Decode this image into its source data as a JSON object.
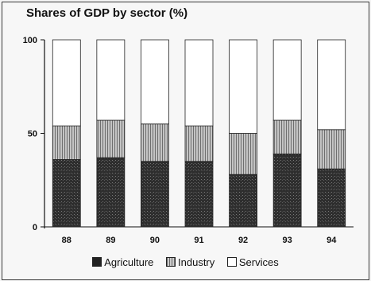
{
  "chart_data": {
    "type": "bar",
    "stacked": true,
    "title": "Shares of GDP by sector (%)",
    "categories": [
      "88",
      "89",
      "90",
      "91",
      "92",
      "93",
      "94"
    ],
    "series": [
      {
        "name": "Agriculture",
        "values": [
          36,
          37,
          35,
          35,
          28,
          39,
          31
        ],
        "color": "#3a3a3a"
      },
      {
        "name": "Industry",
        "values": [
          18,
          20,
          20,
          19,
          22,
          18,
          21
        ],
        "color": "#9a9a9a"
      },
      {
        "name": "Services",
        "values": [
          46,
          43,
          45,
          46,
          50,
          43,
          48
        ],
        "color": "#ffffff"
      }
    ],
    "ylim": [
      0,
      100
    ],
    "yticks": [
      0,
      50,
      100
    ],
    "grid": false,
    "legend_position": "bottom"
  }
}
